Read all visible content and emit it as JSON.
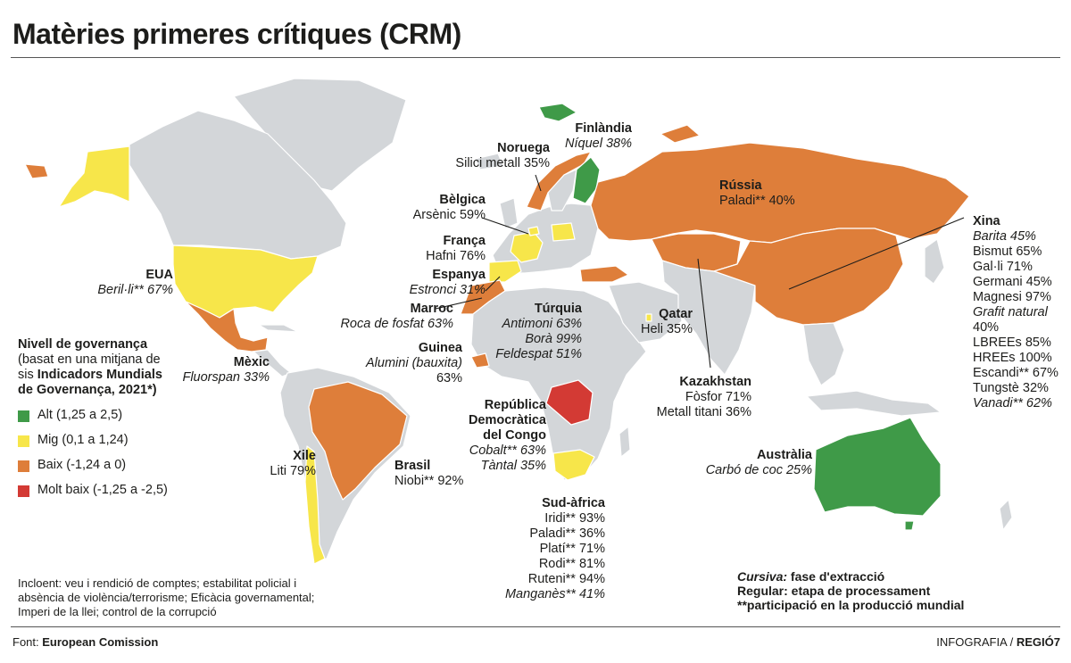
{
  "title": "Matèries primeres crítiques (CRM)",
  "colors": {
    "alt": "#3f9a48",
    "mig": "#f7e64a",
    "baix": "#de7e3a",
    "molt_baix": "#d33a34",
    "no_data": "#d3d6d9"
  },
  "legend": {
    "heading": "Nivell de governança",
    "desc1": "(basat en una mitjana de",
    "desc2_plain": "sis",
    "desc2_bold": "Indicadors Mundials",
    "desc3": "de Governança, 2021*)",
    "items": [
      "Alt (1,25 a 2,5)",
      "Mig (0,1 a 1,24)",
      "Baix (-1,24 a 0)",
      "Molt baix (-1,25 a -2,5)"
    ]
  },
  "note": {
    "line1": "Incloent: veu i rendició de comptes; estabilitat policial i",
    "line2": "absència de violència/terrorisme; Eficàcia governamental;",
    "line3": "Imperi de la llei; control de la corrupció"
  },
  "key": {
    "italic_label": "Cursiva:",
    "italic_desc": "fase d'extracció",
    "regular": "Regular:  etapa de processament",
    "stars": "**participació en la producció mundial"
  },
  "footer": {
    "source_label": "Font:",
    "source": "European Comission",
    "credit_label": "INFOGRAFIA /",
    "credit": "REGIÓ7"
  },
  "countries": {
    "eua": {
      "name": "EUA",
      "line1": "Beril·li** 67%"
    },
    "mexic": {
      "name": "Mèxic",
      "line1": "Fluorspan 33%"
    },
    "xile": {
      "name": "Xile",
      "line1": "Liti 79%"
    },
    "brasil": {
      "name": "Brasil",
      "line1": "Niobi** 92%"
    },
    "noruega": {
      "name": "Noruega",
      "line1": "Silici metall 35%"
    },
    "finlandia": {
      "name": "Finlàndia",
      "line1": "Níquel 38%"
    },
    "belgica": {
      "name": "Bèlgica",
      "line1": "Arsènic 59%"
    },
    "franca": {
      "name": "França",
      "line1": "Hafni 76%"
    },
    "espanya": {
      "name": "Espanya",
      "line1": "Estronci  31%"
    },
    "marroc": {
      "name": "Marroc",
      "line1": "Roca de fosfat 63%"
    },
    "guinea": {
      "name": "Guinea",
      "line1": "Alumini (bauxita)",
      "line2": "63%"
    },
    "turquia": {
      "name": "Túrquia",
      "line1": "Antimoni 63%",
      "line2": "Borà 99%",
      "line3": "Feldespat 51%"
    },
    "rdc": {
      "name1": "República",
      "name2": "Democràtica",
      "name3": "del Congo",
      "line1": "Cobalt** 63%",
      "line2": "Tàntal 35%"
    },
    "sudafrica": {
      "name": "Sud-àfrica",
      "lines": [
        "Iridi** 93%",
        "Paladi** 36%",
        "Platí** 71%",
        "Rodi** 81%",
        "Ruteni** 94%",
        "Manganès** 41%"
      ]
    },
    "russia": {
      "name": "Rússia",
      "line1": "Paladi** 40%"
    },
    "qatar": {
      "name": "Qatar",
      "line1": "Heli 35%"
    },
    "kazakhstan": {
      "name": "Kazakhstan",
      "line1": "Fòsfor 71%",
      "line2": "Metall titani 36%"
    },
    "xina": {
      "name": "Xina",
      "lines": [
        "Barita 45%",
        "Bismut 65%",
        "Gal·li 71%",
        "Germani 45%",
        "Magnesi 97%",
        "Grafit natural",
        "40%",
        "LBREEs 85%",
        "HREEs 100%",
        "Escandi** 67%",
        "Tungstè 32%",
        "Vanadi** 62%"
      ]
    },
    "australia": {
      "name": "Austràlia",
      "line1": "Carbó de coc 25%"
    }
  }
}
